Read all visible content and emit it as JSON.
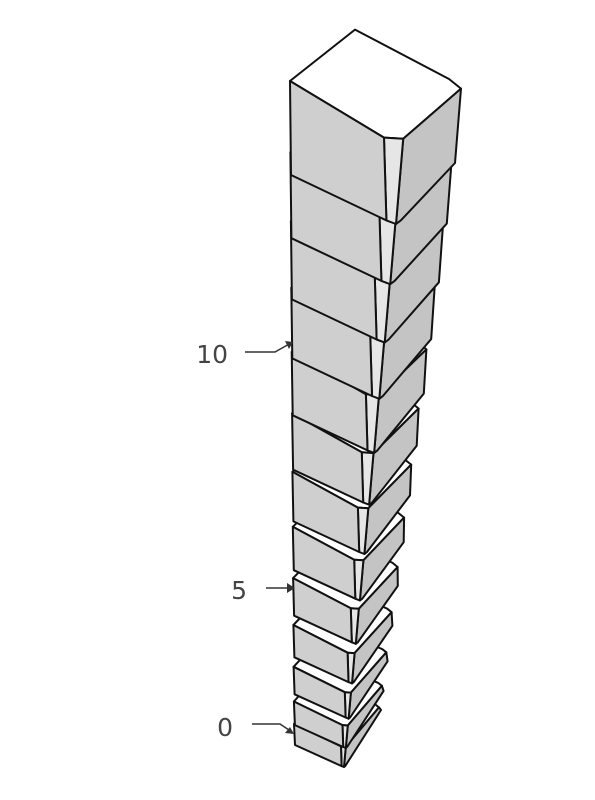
{
  "figure": {
    "labels": [
      {
        "text": "10"
      },
      {
        "text": "5"
      },
      {
        "text": "0"
      }
    ],
    "block_count": 13,
    "colors": {
      "front_face": "#cfcfcf",
      "right_face": "#c4c4c4",
      "top_face": "#ffffff",
      "outline": "#111111",
      "label_text": "#444444",
      "leader_line": "#333333"
    }
  }
}
